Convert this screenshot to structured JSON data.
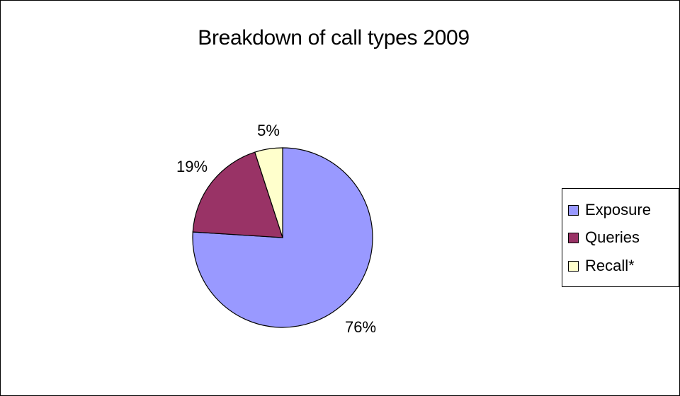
{
  "chart_data": {
    "type": "pie",
    "title": "Breakdown of call types 2009",
    "slices": [
      {
        "name": "Exposure",
        "value": 76,
        "label": "76%",
        "color": "#9999ff"
      },
      {
        "name": "Queries",
        "value": 19,
        "label": "19%",
        "color": "#993366"
      },
      {
        "name": "Recall*",
        "value": 5,
        "label": "5%",
        "color": "#ffffcc"
      }
    ],
    "legend_position": "right"
  }
}
